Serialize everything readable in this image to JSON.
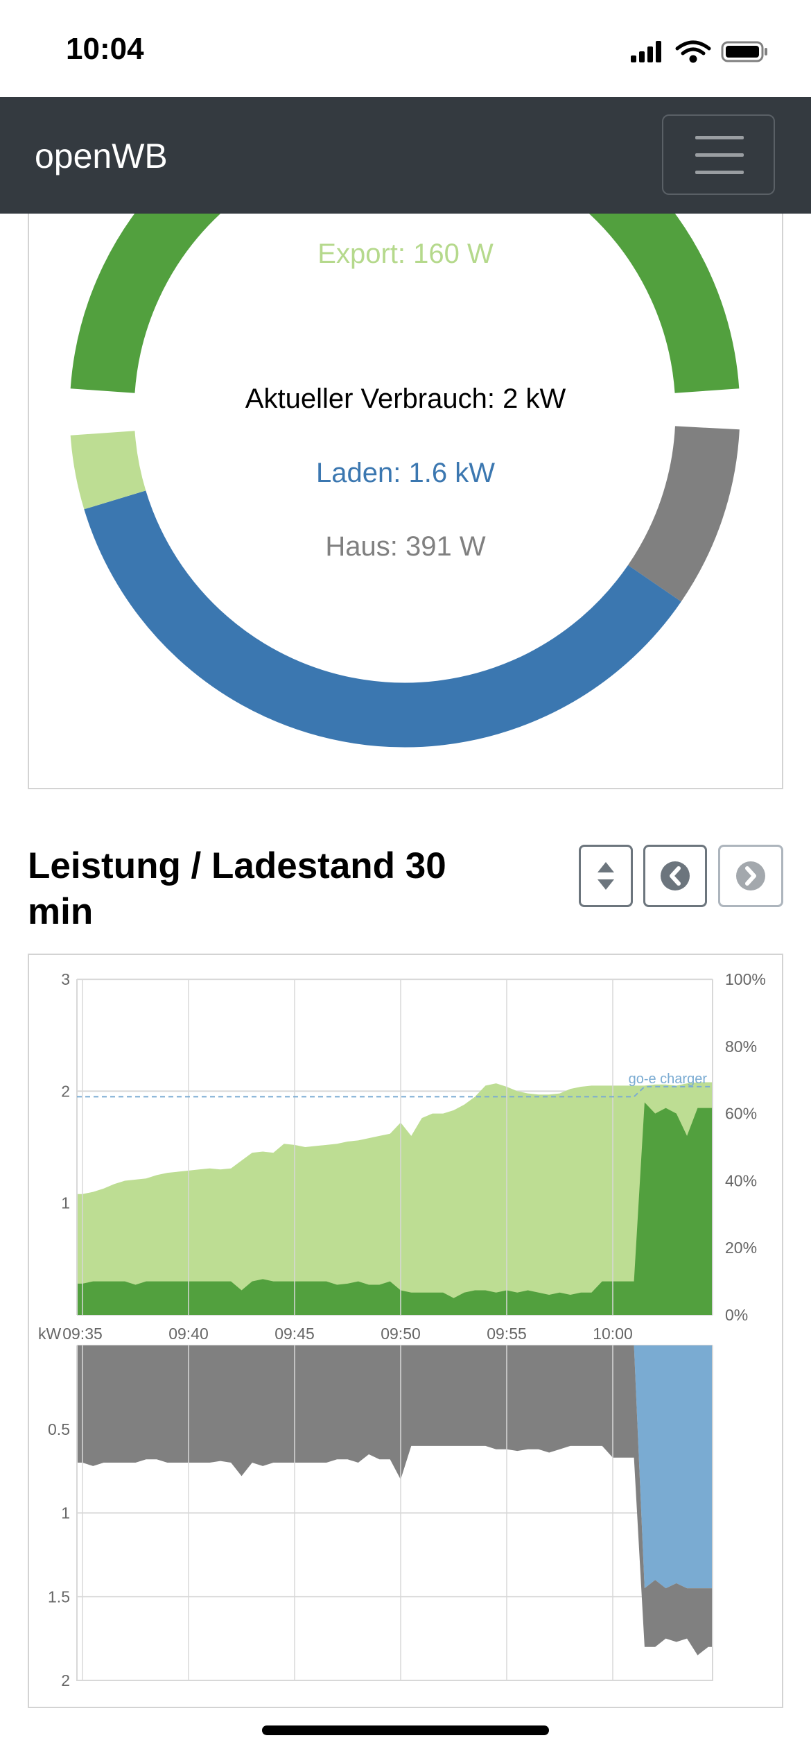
{
  "status_bar": {
    "time": "10:04",
    "icons": [
      "signal-icon",
      "wifi-icon",
      "battery-icon"
    ]
  },
  "navbar": {
    "brand": "openWB",
    "menu_icon": "hamburger-icon"
  },
  "donut": {
    "export_label": "Export: 160 W",
    "consumption_label": "Aktueller Verbrauch: 2 kW",
    "charging_label": "Laden: 1.6 kW",
    "house_label": "Haus: 391 W",
    "source_segment": {
      "value_kw": 2.151,
      "color": "#52a03e"
    },
    "usage_segments": [
      {
        "key": "haus",
        "value_kw": 0.391,
        "color": "#808080"
      },
      {
        "key": "laden",
        "value_kw": 1.6,
        "color": "#3b77b0"
      },
      {
        "key": "export",
        "value_kw": 0.16,
        "color": "#bddd93"
      }
    ],
    "colors": {
      "export_text": "#b5d98c",
      "charging_text": "#3b77b0",
      "house_text": "#808080"
    }
  },
  "chart_section": {
    "title": "Leistung / Ladestand 30 min",
    "buttons": {
      "toggle": "sort-icon",
      "prev": "chevron-left-circle-icon",
      "next": "chevron-right-circle-icon"
    }
  },
  "chart_data": {
    "type": "area",
    "x_start": "09:35",
    "x_step_min": 0.5,
    "x_ticks": [
      "09:35",
      "09:40",
      "09:45",
      "09:50",
      "09:55",
      "10:00"
    ],
    "upper": {
      "ylabel": "kW",
      "y_ticks": [
        "1",
        "2",
        "3"
      ],
      "ylim": [
        0,
        3
      ],
      "y2_ticks": [
        "0%",
        "20%",
        "40%",
        "60%",
        "80%",
        "100%"
      ],
      "y2lim": [
        0,
        100
      ],
      "pv_kw": [
        1.08,
        1.1,
        1.13,
        1.17,
        1.2,
        1.21,
        1.22,
        1.25,
        1.27,
        1.28,
        1.29,
        1.3,
        1.31,
        1.3,
        1.31,
        1.38,
        1.45,
        1.46,
        1.45,
        1.53,
        1.52,
        1.5,
        1.51,
        1.52,
        1.53,
        1.55,
        1.56,
        1.58,
        1.6,
        1.62,
        1.72,
        1.6,
        1.76,
        1.8,
        1.8,
        1.83,
        1.88,
        1.95,
        2.05,
        2.07,
        2.04,
        2.0,
        1.98,
        1.97,
        1.97,
        1.98,
        2.02,
        2.04,
        2.05,
        2.05,
        2.05,
        2.05,
        2.05,
        2.05,
        2.06,
        2.06,
        2.05,
        2.07,
        2.08,
        2.08
      ],
      "pv_used_kw": [
        0.28,
        0.3,
        0.3,
        0.3,
        0.3,
        0.27,
        0.3,
        0.3,
        0.3,
        0.3,
        0.3,
        0.3,
        0.3,
        0.3,
        0.3,
        0.22,
        0.3,
        0.32,
        0.3,
        0.3,
        0.3,
        0.3,
        0.3,
        0.3,
        0.27,
        0.28,
        0.3,
        0.27,
        0.27,
        0.3,
        0.22,
        0.2,
        0.2,
        0.2,
        0.2,
        0.15,
        0.2,
        0.22,
        0.22,
        0.2,
        0.22,
        0.2,
        0.22,
        0.2,
        0.18,
        0.2,
        0.18,
        0.2,
        0.2,
        0.3,
        0.3,
        0.3,
        0.3,
        1.9,
        1.8,
        1.85,
        1.8,
        1.6,
        1.85,
        1.85
      ],
      "soc_label": "go-e charger",
      "soc_pct": [
        65,
        65,
        65,
        65,
        65,
        65,
        65,
        65,
        65,
        65,
        65,
        65,
        65,
        65,
        65,
        65,
        65,
        65,
        65,
        65,
        65,
        65,
        65,
        65,
        65,
        65,
        65,
        65,
        65,
        65,
        65,
        65,
        65,
        65,
        65,
        65,
        65,
        65,
        65,
        65,
        65,
        65,
        65,
        65,
        65,
        65,
        65,
        65,
        65,
        65,
        65,
        65,
        65,
        68,
        68,
        68,
        68,
        68,
        68,
        68
      ],
      "colors": {
        "pv": "#bddd93",
        "pv_used": "#52a03e",
        "soc": "#7aabd2"
      }
    },
    "lower": {
      "ylabel": "kW",
      "y_ticks": [
        "0.5",
        "1",
        "1.5",
        "2"
      ],
      "ylim": [
        0,
        2
      ],
      "house_kw": [
        0.7,
        0.72,
        0.7,
        0.7,
        0.7,
        0.7,
        0.68,
        0.68,
        0.7,
        0.7,
        0.7,
        0.7,
        0.7,
        0.69,
        0.7,
        0.78,
        0.7,
        0.72,
        0.7,
        0.7,
        0.7,
        0.7,
        0.7,
        0.7,
        0.68,
        0.68,
        0.7,
        0.65,
        0.68,
        0.68,
        0.8,
        0.6,
        0.6,
        0.6,
        0.6,
        0.6,
        0.6,
        0.6,
        0.6,
        0.62,
        0.62,
        0.63,
        0.62,
        0.62,
        0.64,
        0.62,
        0.6,
        0.6,
        0.6,
        0.6,
        0.67,
        0.67,
        0.67,
        0.35,
        0.4,
        0.3,
        0.35,
        0.3,
        0.4,
        0.35
      ],
      "charge_kw": [
        0,
        0,
        0,
        0,
        0,
        0,
        0,
        0,
        0,
        0,
        0,
        0,
        0,
        0,
        0,
        0,
        0,
        0,
        0,
        0,
        0,
        0,
        0,
        0,
        0,
        0,
        0,
        0,
        0,
        0,
        0,
        0,
        0,
        0,
        0,
        0,
        0,
        0,
        0,
        0,
        0,
        0,
        0,
        0,
        0,
        0,
        0,
        0,
        0,
        0,
        0,
        0,
        0,
        1.45,
        1.4,
        1.45,
        1.42,
        1.45,
        1.45,
        1.45
      ],
      "colors": {
        "house": "#808080",
        "charge": "#7aabd2"
      }
    }
  }
}
